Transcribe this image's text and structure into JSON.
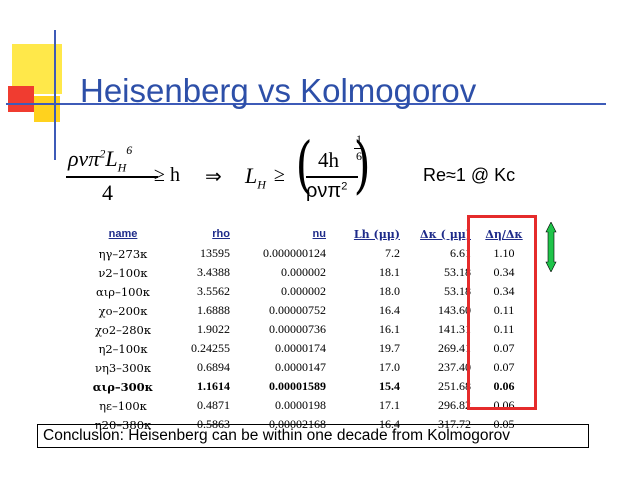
{
  "title": "Heisenberg vs Kolmogorov",
  "equation": {
    "left_numerator": "ρνπ²L_H⁶",
    "left_denominator": "4",
    "geq_h": "≥ h",
    "implies": "⇒",
    "lh": "L_H",
    "geq": "≥",
    "right_numerator": "4h",
    "right_denominator": "ρνπ²",
    "exponent": "1/6"
  },
  "re_note": "Re≈1 @ Kc",
  "table": {
    "headers": [
      "name",
      "rho",
      "nu",
      "Lh (μμ)",
      "Δκ ( μμ)",
      "Δη/Δκ"
    ],
    "rows": [
      [
        "ηγ–273κ",
        "13595",
        "0.000000124",
        "7.2",
        "6.61",
        "1.10"
      ],
      [
        "ν2–100κ",
        "3.4388",
        "0.000002",
        "18.1",
        "53.18",
        "0.34"
      ],
      [
        "αιρ–100κ",
        "3.5562",
        "0.000002",
        "18.0",
        "53.18",
        "0.34"
      ],
      [
        "χο–200κ",
        "1.6888",
        "0.00000752",
        "16.4",
        "143.60",
        "0.11"
      ],
      [
        "χο2–280κ",
        "1.9022",
        "0.00000736",
        "16.1",
        "141.31",
        "0.11"
      ],
      [
        "η2–100κ",
        "0.24255",
        "0.0000174",
        "19.7",
        "269.41",
        "0.07"
      ],
      [
        "νη3–300κ",
        "0.6894",
        "0.0000147",
        "17.0",
        "237.40",
        "0.07"
      ],
      [
        "αιρ–300κ",
        "1.1614",
        "0.00001589",
        "15.4",
        "251.68",
        "0.06"
      ],
      [
        "ηε–100κ",
        "0.4871",
        "0.0000198",
        "17.1",
        "296.82",
        "0.06"
      ],
      [
        "η20–380κ",
        "0.5863",
        "0.00002168",
        "16.4",
        "317.72",
        "0.05"
      ]
    ],
    "bold_row_index": 7
  },
  "conclusion": "Conclusion: Heisenberg can be within one decade from Kolmogorov",
  "colors": {
    "title": "#2d4fa8",
    "header": "#1e2b8a",
    "highlight_box": "#e52b2b",
    "green_marker": "#1fc44a"
  }
}
